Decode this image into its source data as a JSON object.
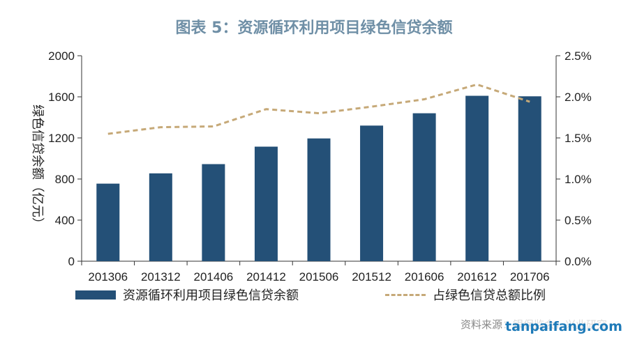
{
  "chart_data": {
    "type": "bar",
    "title": "图表 5：资源循环利用项目绿色信贷余额",
    "ylabel": "绿色信贷余额（亿元）",
    "categories": [
      "201306",
      "201312",
      "201406",
      "201412",
      "201506",
      "201512",
      "201606",
      "201612",
      "201706"
    ],
    "series": [
      {
        "name": "资源循环利用项目绿色信贷余额",
        "type": "bar",
        "axis": "left",
        "values": [
          755,
          855,
          945,
          1115,
          1195,
          1320,
          1440,
          1610,
          1605
        ],
        "color": "#245077"
      },
      {
        "name": "占绿色信贷总额比例",
        "type": "line",
        "axis": "right",
        "style": "dashed",
        "values": [
          1.55,
          1.63,
          1.64,
          1.85,
          1.8,
          1.88,
          1.97,
          2.15,
          1.94
        ],
        "color": "#c6a978"
      }
    ],
    "ylim": [
      0,
      2000
    ],
    "yticks": [
      "0",
      "400",
      "800",
      "1200",
      "1600",
      "2000"
    ],
    "y2lim": [
      0,
      2.5
    ],
    "y2ticks": [
      "0.0%",
      "0.5%",
      "1.0%",
      "1.5%",
      "2.0%",
      "2.5%"
    ],
    "legend_position": "bottom"
  },
  "source_text": "资料来源：银保监会，兴业研究",
  "watermark_text": "tanpaifang.com"
}
